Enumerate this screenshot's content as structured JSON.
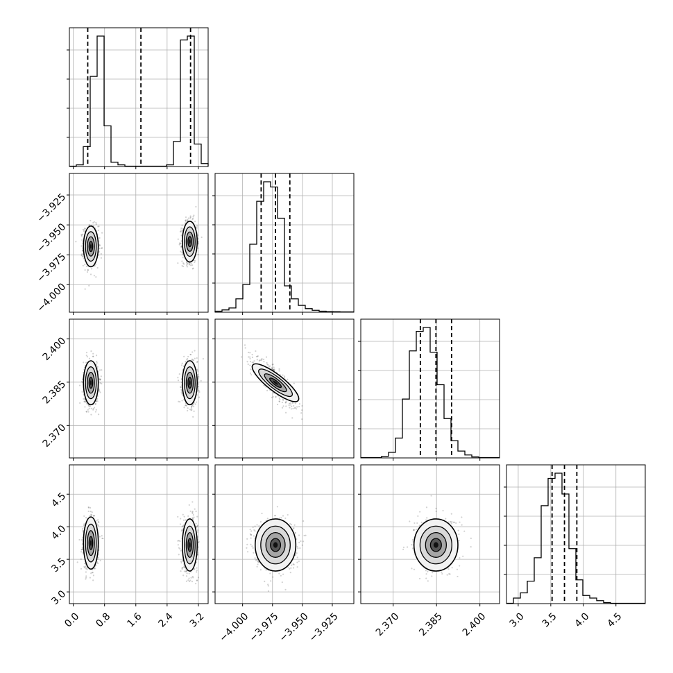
{
  "chart_data": {
    "type": "corner",
    "title": "",
    "parameters": [
      "",
      "",
      "",
      ""
    ],
    "colors": {
      "line": "#000000",
      "grid": "#b0b0b0",
      "quantile": "#000000",
      "scatter": "#000000",
      "fill_dark": "#000000",
      "fill_light": "#ffffff"
    },
    "grid": true,
    "ranges": [
      [
        -0.1,
        3.45
      ],
      [
        -4.023,
        -3.907
      ],
      [
        2.3588,
        2.4068
      ],
      [
        2.82,
        4.95
      ]
    ],
    "ticks": {
      "p0": {
        "values": [
          0.0,
          0.8,
          1.6,
          2.4,
          3.2
        ],
        "labels": [
          "0.0",
          "0.8",
          "1.6",
          "2.4",
          "3.2"
        ]
      },
      "p1": {
        "values": [
          -4.0,
          -3.975,
          -3.95,
          -3.925
        ],
        "labels": [
          "−4.000",
          "−3.975",
          "−3.950",
          "−3.925"
        ]
      },
      "p2": {
        "values": [
          2.37,
          2.385,
          2.4
        ],
        "labels": [
          "2.370",
          "2.385",
          "2.400"
        ]
      },
      "p3": {
        "values": [
          3.0,
          3.5,
          4.0,
          4.5
        ],
        "labels": [
          "3.0",
          "3.5",
          "4.0",
          "4.5"
        ]
      }
    },
    "quantiles": {
      "p0": [
        0.37,
        1.73,
        3.0
      ],
      "p1": [
        -3.9845,
        -3.9725,
        -3.9605
      ],
      "p2": [
        2.3794,
        2.3848,
        2.3902
      ],
      "p3": [
        3.52,
        3.71,
        3.9
      ]
    },
    "histograms": {
      "p0": {
        "bin_start": -0.1,
        "bin_width": 0.1775,
        "counts": [
          0,
          0.01,
          0.15,
          0.69,
          1.0,
          0.31,
          0.03,
          0.01,
          0,
          0,
          0,
          0,
          0,
          0,
          0.01,
          0.19,
          0.97,
          1.0,
          0.17,
          0.02
        ]
      },
      "p1": {
        "bin_start": -4.023,
        "bin_width": 0.0058,
        "counts": [
          0.005,
          0.015,
          0.03,
          0.1,
          0.21,
          0.52,
          0.85,
          1.0,
          0.96,
          0.72,
          0.2,
          0.1,
          0.05,
          0.025,
          0.012,
          0.005,
          0.002,
          0.001,
          0,
          0
        ]
      },
      "p2": {
        "bin_start": 2.3588,
        "bin_width": 0.0024,
        "counts": [
          0,
          0,
          0,
          0.01,
          0.04,
          0.15,
          0.45,
          0.82,
          0.97,
          1.0,
          0.81,
          0.56,
          0.3,
          0.13,
          0.05,
          0.02,
          0.005,
          0,
          0,
          0
        ]
      },
      "p3": {
        "bin_start": 2.82,
        "bin_width": 0.1065,
        "counts": [
          0,
          0.04,
          0.08,
          0.17,
          0.35,
          0.75,
          0.96,
          1.0,
          0.84,
          0.42,
          0.18,
          0.06,
          0.04,
          0.02,
          0.005,
          0,
          0,
          0,
          0,
          0
        ]
      }
    },
    "panels_2d": [
      {
        "row": 1,
        "col": 0,
        "blobs": [
          {
            "mx": 0.45,
            "my": -3.968,
            "sx": 0.095,
            "sy": 0.0085,
            "rho": 0
          },
          {
            "mx": 2.98,
            "my": -3.964,
            "sx": 0.095,
            "sy": 0.0085,
            "rho": 0
          }
        ]
      },
      {
        "row": 2,
        "col": 0,
        "blobs": [
          {
            "mx": 0.45,
            "my": 2.3848,
            "sx": 0.095,
            "sy": 0.0038,
            "rho": 0
          },
          {
            "mx": 2.98,
            "my": 2.3848,
            "sx": 0.095,
            "sy": 0.0038,
            "rho": 0
          }
        ]
      },
      {
        "row": 2,
        "col": 1,
        "blobs": [
          {
            "mx": -3.9725,
            "my": 2.3848,
            "sx": 0.0085,
            "sy": 0.0038,
            "rho": -0.85
          }
        ]
      },
      {
        "row": 3,
        "col": 0,
        "blobs": [
          {
            "mx": 0.45,
            "my": 3.75,
            "sx": 0.095,
            "sy": 0.2,
            "rho": 0
          },
          {
            "mx": 2.98,
            "my": 3.72,
            "sx": 0.095,
            "sy": 0.2,
            "rho": 0
          }
        ]
      },
      {
        "row": 3,
        "col": 1,
        "blobs": [
          {
            "mx": -3.9725,
            "my": 3.72,
            "sx": 0.0085,
            "sy": 0.2,
            "rho": 0
          }
        ]
      },
      {
        "row": 3,
        "col": 2,
        "blobs": [
          {
            "mx": 2.3848,
            "my": 3.72,
            "sx": 0.0038,
            "sy": 0.2,
            "rho": 0
          }
        ]
      }
    ]
  }
}
